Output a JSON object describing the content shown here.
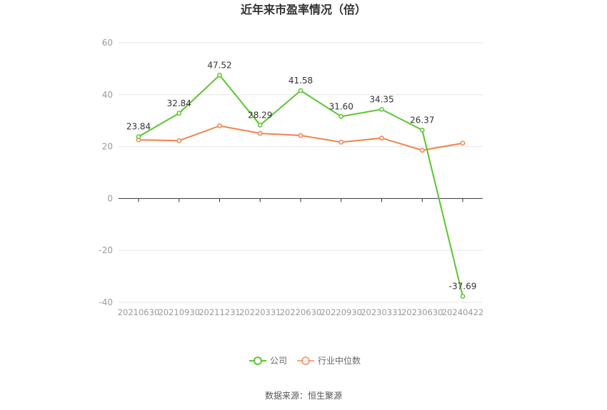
{
  "chart_data": {
    "type": "line",
    "title": "近年来市盈率情况（倍）",
    "categories": [
      "20210630",
      "20210930",
      "20211231",
      "20220331",
      "20220630",
      "20220930",
      "20230331",
      "20230630",
      "20240422"
    ],
    "series": [
      {
        "name": "公司",
        "color": "#5CC52E",
        "values": [
          23.84,
          32.84,
          47.52,
          28.29,
          41.58,
          31.6,
          34.35,
          26.37,
          -37.69
        ],
        "labels": [
          "23.84",
          "32.84",
          "47.52",
          "28.29",
          "41.58",
          "31.60",
          "34.35",
          "26.37",
          "-37.69"
        ]
      },
      {
        "name": "行业中位数",
        "color": "#F0834A",
        "values": [
          22.6,
          22.3,
          28.0,
          25.1,
          24.3,
          21.7,
          23.3,
          18.6,
          21.3
        ]
      }
    ],
    "yticks": [
      "60",
      "40",
      "20",
      "0",
      "-20",
      "-40"
    ],
    "ylim": [
      -40,
      60
    ],
    "grid": true,
    "legend": "bottom-center",
    "source": "数据来源：恒生聚源"
  }
}
